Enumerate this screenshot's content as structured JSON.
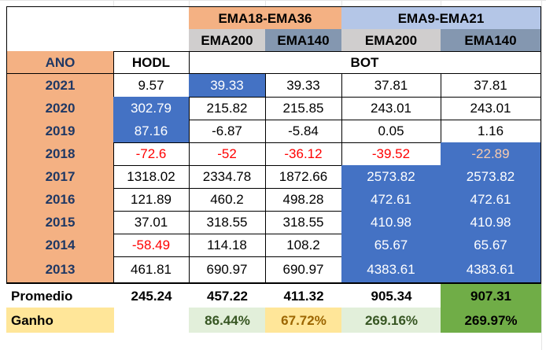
{
  "headers": {
    "group1": "EMA18-EMA36",
    "group2": "EMA9-EMA21",
    "ema200": "EMA200",
    "ema140": "EMA140",
    "ano": "ANO",
    "hodl": "HODL",
    "bot": "BOT"
  },
  "rows": [
    {
      "year": "2021",
      "hodl": "9.57",
      "c1": "39.33",
      "c2": "39.33",
      "c3": "37.81",
      "c4": "37.81"
    },
    {
      "year": "2020",
      "hodl": "302.79",
      "c1": "215.82",
      "c2": "215.85",
      "c3": "243.01",
      "c4": "243.01"
    },
    {
      "year": "2019",
      "hodl": "87.16",
      "c1": "-6.87",
      "c2": "-5.84",
      "c3": "0.05",
      "c4": "1.16"
    },
    {
      "year": "2018",
      "hodl": "-72.6",
      "c1": "-52",
      "c2": "-36.12",
      "c3": "-39.52",
      "c4": "-22.89"
    },
    {
      "year": "2017",
      "hodl": "1318.02",
      "c1": "2334.78",
      "c2": "1872.66",
      "c3": "2573.82",
      "c4": "2573.82"
    },
    {
      "year": "2016",
      "hodl": "121.89",
      "c1": "460.2",
      "c2": "498.28",
      "c3": "472.61",
      "c4": "472.61"
    },
    {
      "year": "2015",
      "hodl": "37.01",
      "c1": "318.55",
      "c2": "318.55",
      "c3": "410.98",
      "c4": "410.98"
    },
    {
      "year": "2014",
      "hodl": "-58.49",
      "c1": "114.18",
      "c2": "108.2",
      "c3": "65.67",
      "c4": "65.67"
    },
    {
      "year": "2013",
      "hodl": "461.81",
      "c1": "690.97",
      "c2": "690.97",
      "c3": "4383.61",
      "c4": "4383.61"
    }
  ],
  "promedio": {
    "label": "Promedio",
    "hodl": "245.24",
    "c1": "457.22",
    "c2": "411.32",
    "c3": "905.34",
    "c4": "907.31"
  },
  "ganho": {
    "label": "Ganho",
    "c1": "86.44%",
    "c2": "67.72%",
    "c3": "269.16%",
    "c4": "269.97%"
  },
  "colors": {
    "peach": "#f4b183",
    "light_blue": "#b4c6e7",
    "gray": "#d0cece",
    "slate": "#8497b0",
    "highlight_blue": "#4472c4",
    "green": "#70ad47",
    "light_green": "#e2efda",
    "yellow": "#ffe699",
    "negative_red": "#ff0000"
  }
}
